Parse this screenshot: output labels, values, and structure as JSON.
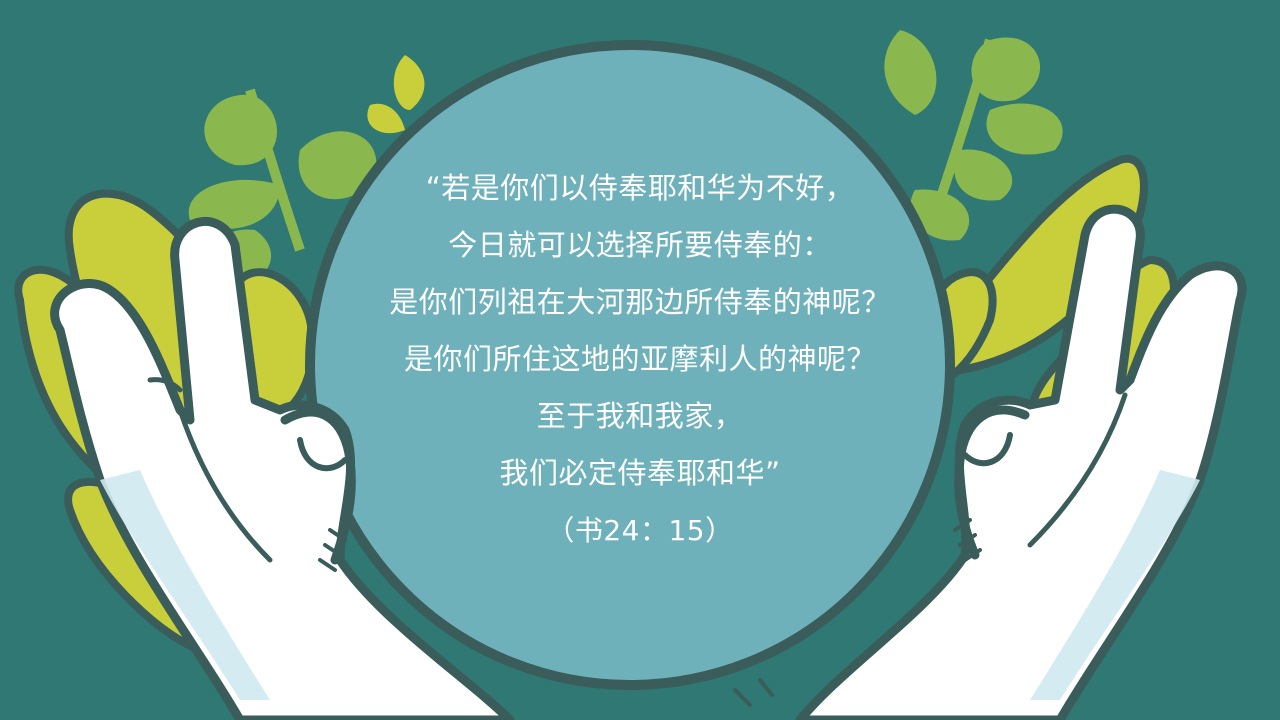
{
  "colors": {
    "background": "#2f7873",
    "circle": "#6fb1bb",
    "outline": "#3a5c5a",
    "leaf_green": "#8ab84f",
    "leaf_yellow": "#c9cf3a",
    "hand": "#ffffff",
    "hand_shadow": "#cfe9ef",
    "text": "#ffffff"
  },
  "quote": {
    "lines": [
      "“若是你们以侍奉耶和华为不好，",
      "今日就可以选择所要侍奉的：",
      "是你们列祖在大河那边所侍奉的神呢？",
      "是你们所住这地的亚摩利人的神呢？",
      "至于我和我家，",
      "我们必定侍奉耶和华”"
    ],
    "reference": "（书24：15）"
  }
}
